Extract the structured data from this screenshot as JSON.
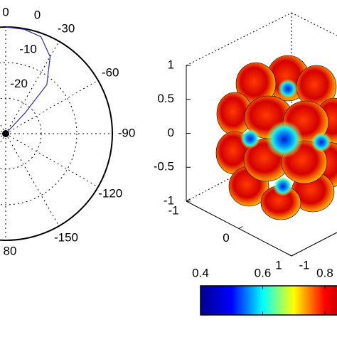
{
  "chart_data": [
    {
      "type": "polar",
      "theta": [
        0,
        -10,
        -20,
        -30,
        -40,
        -43,
        -45
      ],
      "r": [
        0,
        -0.2,
        -1,
        -5,
        -12,
        -22,
        -30
      ],
      "color": "#2a2aa0",
      "rlim": [
        -30,
        0
      ],
      "rticks": [
        -20,
        -10,
        0
      ],
      "thetaticks": [
        0,
        -30,
        -60,
        -90,
        -120,
        -150
      ],
      "annotations": [
        "80"
      ],
      "grid": true
    },
    {
      "type": "surface3d",
      "zlim": [
        -1,
        1
      ],
      "zticks": [
        1,
        0.5,
        0,
        -0.5,
        -1
      ],
      "ylim": [
        -1,
        1
      ],
      "yticks": [
        -1,
        0,
        1
      ],
      "xlim": [
        -1,
        1
      ],
      "xticks": [
        -1
      ],
      "colorbar": {
        "clim": [
          0.4,
          0.9
        ],
        "ticks": [
          0.4,
          0.6,
          0.8
        ],
        "colormap": [
          "#00008f",
          "#0000ff",
          "#00ffff",
          "#ffff00",
          "#ff0000",
          "#800000"
        ]
      }
    }
  ]
}
